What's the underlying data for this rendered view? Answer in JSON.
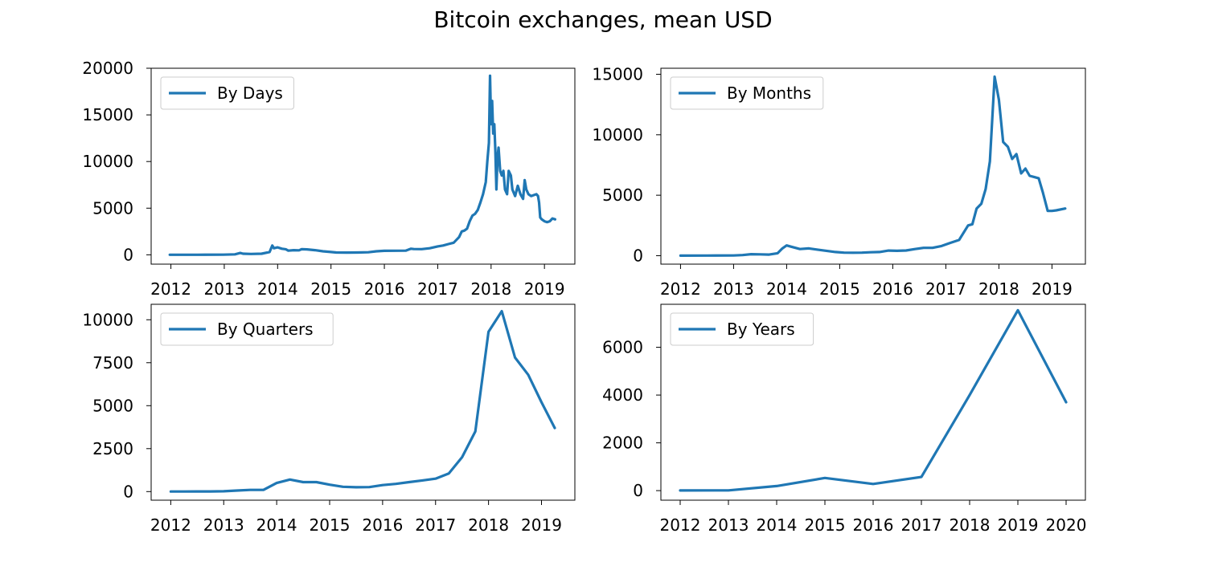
{
  "figure": {
    "title": "Bitcoin exchanges, mean USD",
    "line_color": "#1f77b4"
  },
  "chart_data": [
    {
      "type": "line",
      "title": "",
      "legend": {
        "entry": "By Days",
        "placement": "top-left"
      },
      "xlabel": "",
      "ylabel": "",
      "x_ticks": [
        "2012",
        "2013",
        "2014",
        "2015",
        "2016",
        "2017",
        "2018",
        "2019"
      ],
      "y_ticks": [
        0,
        5000,
        10000,
        15000,
        20000
      ],
      "xlim": [
        2011.63,
        2019.57
      ],
      "ylim": [
        -1000,
        20000
      ],
      "series": [
        {
          "x": [
            2011.98,
            2012.5,
            2012.98,
            2013.2,
            2013.3,
            2013.35,
            2013.5,
            2013.7,
            2013.85,
            2013.9,
            2013.93,
            2014.0,
            2014.08,
            2014.15,
            2014.2,
            2014.3,
            2014.4,
            2014.45,
            2014.55,
            2014.7,
            2014.85,
            2015.0,
            2015.1,
            2015.3,
            2015.5,
            2015.7,
            2015.85,
            2016.0,
            2016.2,
            2016.4,
            2016.5,
            2016.55,
            2016.7,
            2016.85,
            2017.0,
            2017.1,
            2017.2,
            2017.3,
            2017.4,
            2017.45,
            2017.5,
            2017.55,
            2017.6,
            2017.65,
            2017.7,
            2017.75,
            2017.8,
            2017.85,
            2017.9,
            2017.93,
            2017.96,
            2017.98,
            2018.0,
            2018.02,
            2018.04,
            2018.06,
            2018.08,
            2018.1,
            2018.12,
            2018.14,
            2018.17,
            2018.2,
            2018.23,
            2018.26,
            2018.3,
            2018.33,
            2018.37,
            2018.4,
            2018.45,
            2018.5,
            2018.55,
            2018.6,
            2018.63,
            2018.66,
            2018.7,
            2018.75,
            2018.8,
            2018.85,
            2018.88,
            2018.9,
            2018.92,
            2018.95,
            2019.0,
            2019.05,
            2019.1,
            2019.15,
            2019.2
          ],
          "y": [
            5,
            7,
            13,
            50,
            200,
            120,
            90,
            120,
            300,
            1000,
            700,
            800,
            650,
            600,
            450,
            500,
            480,
            600,
            580,
            500,
            380,
            300,
            250,
            240,
            250,
            270,
            380,
            430,
            440,
            450,
            650,
            620,
            610,
            700,
            900,
            1000,
            1150,
            1300,
            1900,
            2500,
            2600,
            2800,
            3600,
            4200,
            4400,
            4800,
            5600,
            6500,
            7800,
            10000,
            12000,
            19200,
            14000,
            16500,
            13000,
            14000,
            11200,
            7000,
            10500,
            11500,
            9000,
            8500,
            9000,
            7000,
            6500,
            9000,
            8500,
            7000,
            6300,
            7400,
            6500,
            6000,
            8000,
            7000,
            6500,
            6300,
            6400,
            6500,
            6300,
            5600,
            4000,
            3800,
            3600,
            3500,
            3600,
            3900,
            3800
          ]
        }
      ]
    },
    {
      "type": "line",
      "title": "",
      "legend": {
        "entry": "By Months",
        "placement": "top-left"
      },
      "xlabel": "",
      "ylabel": "",
      "x_ticks": [
        "2012",
        "2013",
        "2014",
        "2015",
        "2016",
        "2017",
        "2018",
        "2019"
      ],
      "y_ticks": [
        0,
        5000,
        10000,
        15000
      ],
      "xlim": [
        2011.63,
        2019.63
      ],
      "ylim": [
        -700,
        15500
      ],
      "series": [
        {
          "x": [
            2012.0,
            2012.5,
            2013.0,
            2013.17,
            2013.33,
            2013.5,
            2013.67,
            2013.83,
            2013.92,
            2014.0,
            2014.08,
            2014.25,
            2014.42,
            2014.58,
            2014.75,
            2014.92,
            2015.08,
            2015.25,
            2015.42,
            2015.58,
            2015.75,
            2015.92,
            2016.08,
            2016.25,
            2016.42,
            2016.58,
            2016.75,
            2016.92,
            2017.08,
            2017.25,
            2017.42,
            2017.5,
            2017.58,
            2017.67,
            2017.75,
            2017.83,
            2017.92,
            2018.0,
            2018.08,
            2018.17,
            2018.25,
            2018.33,
            2018.42,
            2018.5,
            2018.58,
            2018.67,
            2018.75,
            2018.83,
            2018.92,
            2019.0,
            2019.08,
            2019.25
          ],
          "y": [
            6,
            8,
            20,
            50,
            120,
            110,
            90,
            200,
            600,
            850,
            750,
            550,
            600,
            500,
            400,
            300,
            250,
            240,
            250,
            280,
            300,
            420,
            400,
            430,
            550,
            650,
            650,
            800,
            1050,
            1300,
            2500,
            2600,
            3900,
            4300,
            5500,
            7800,
            14800,
            12900,
            9400,
            9000,
            8000,
            8400,
            6800,
            7200,
            6600,
            6500,
            6400,
            5200,
            3700,
            3700,
            3750,
            3900
          ]
        }
      ]
    },
    {
      "type": "line",
      "title": "",
      "legend": {
        "entry": "By Quarters",
        "placement": "top-left"
      },
      "xlabel": "",
      "ylabel": "",
      "x_ticks": [
        "2012",
        "2013",
        "2014",
        "2015",
        "2016",
        "2017",
        "2018",
        "2019"
      ],
      "y_ticks": [
        0,
        2500,
        5000,
        7500,
        10000
      ],
      "xlim": [
        2011.63,
        2019.63
      ],
      "ylim": [
        -500,
        10900
      ],
      "series": [
        {
          "x": [
            2012.0,
            2012.25,
            2012.5,
            2012.75,
            2013.0,
            2013.25,
            2013.5,
            2013.75,
            2014.0,
            2014.25,
            2014.5,
            2014.75,
            2015.0,
            2015.25,
            2015.5,
            2015.75,
            2016.0,
            2016.25,
            2016.5,
            2016.75,
            2017.0,
            2017.25,
            2017.5,
            2017.75,
            2018.0,
            2018.25,
            2018.5,
            2018.75,
            2019.0,
            2019.25
          ],
          "y": [
            5,
            6,
            8,
            11,
            20,
            60,
            100,
            100,
            500,
            700,
            550,
            550,
            400,
            280,
            250,
            260,
            380,
            450,
            550,
            650,
            750,
            1050,
            2000,
            3500,
            9300,
            10500,
            7800,
            6800,
            5200,
            3700
          ]
        }
      ]
    },
    {
      "type": "line",
      "title": "",
      "legend": {
        "entry": "By Years",
        "placement": "top-left"
      },
      "xlabel": "",
      "ylabel": "",
      "x_ticks": [
        "2012",
        "2013",
        "2014",
        "2015",
        "2016",
        "2017",
        "2018",
        "2019",
        "2020"
      ],
      "y_ticks": [
        0,
        2000,
        4000,
        6000
      ],
      "xlim": [
        2011.6,
        2020.4
      ],
      "ylim": [
        -400,
        7800
      ],
      "series": [
        {
          "x": [
            2012,
            2013,
            2014,
            2015,
            2016,
            2017,
            2018,
            2019,
            2020
          ],
          "y": [
            5,
            10,
            190,
            530,
            280,
            570,
            4000,
            7550,
            3700
          ]
        }
      ]
    }
  ]
}
